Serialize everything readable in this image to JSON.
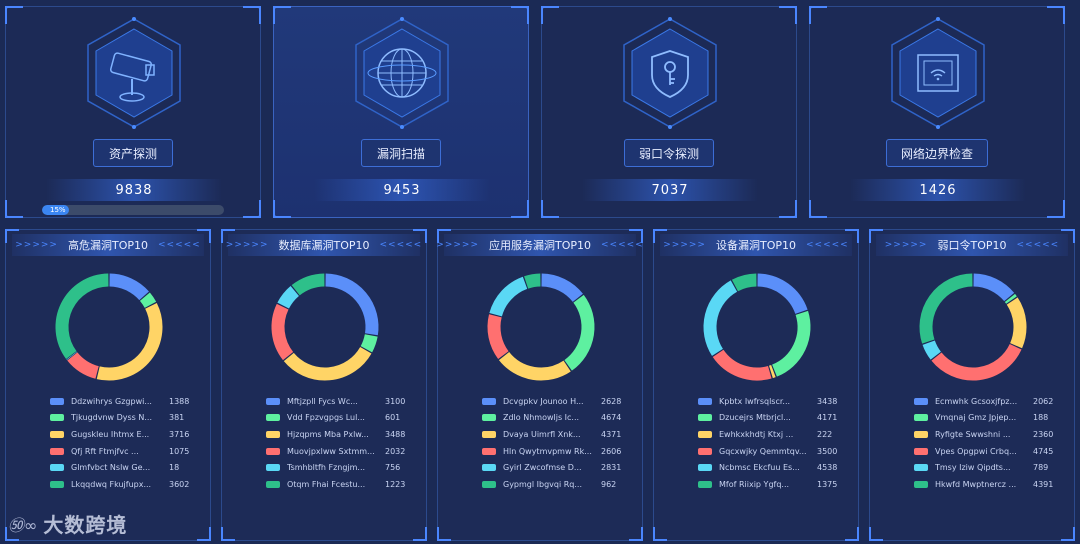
{
  "colors": {
    "blue": "#5b8ff9",
    "green": "#5ef0a0",
    "yellow": "#ffd466",
    "red": "#ff7070",
    "cyan": "#5ad8f5",
    "teal": "#2ec08a"
  },
  "cards": [
    {
      "label": "资产探测",
      "value": "9838",
      "icon": "camera-icon",
      "progress_label": "15%",
      "progress": 0.15
    },
    {
      "label": "漏洞扫描",
      "value": "9453",
      "icon": "globe-icon"
    },
    {
      "label": "弱口令探测",
      "value": "7037",
      "icon": "shield-key-icon"
    },
    {
      "label": "网络边界检查",
      "value": "1426",
      "icon": "network-device-icon"
    }
  ],
  "panels": [
    {
      "arrows_left": ">>>>>",
      "arrows_right": "<<<<<",
      "title": "高危漏洞TOP10",
      "items": [
        {
          "name": "Ddzwihrys Gzgpwi...",
          "value": "1388",
          "color": "#5b8ff9",
          "num": 1388
        },
        {
          "name": "Tjkugdvnw Dyss N...",
          "value": "381",
          "color": "#5ef0a0",
          "num": 381
        },
        {
          "name": "Gugskleu Ihtmx E...",
          "value": "3716",
          "color": "#ffd466",
          "num": 3716
        },
        {
          "name": "Qfj Rft Ftmjfvc ...",
          "value": "1075",
          "color": "#ff7070",
          "num": 1075
        },
        {
          "name": "Glmfvbct Nslw Ge...",
          "value": "18",
          "color": "#5ad8f5",
          "num": 18
        },
        {
          "name": "Lkqqdwq Fkujfupx...",
          "value": "3602",
          "color": "#2ec08a",
          "num": 3602
        }
      ]
    },
    {
      "arrows_left": ">>>>>",
      "arrows_right": "<<<<<",
      "title": "数据库漏洞TOP10",
      "items": [
        {
          "name": "Mftjzpll Fycs Wc...",
          "value": "3100",
          "color": "#5b8ff9",
          "num": 3100
        },
        {
          "name": "Vdd Fpzvgpgs Lul...",
          "value": "601",
          "color": "#5ef0a0",
          "num": 601
        },
        {
          "name": "Hjzqpms Mba Pxlw...",
          "value": "3488",
          "color": "#ffd466",
          "num": 3488
        },
        {
          "name": "Muovjpxlww Sxtmm...",
          "value": "2032",
          "color": "#ff7070",
          "num": 2032
        },
        {
          "name": "Tsmhbltfh Fzngjm...",
          "value": "756",
          "color": "#5ad8f5",
          "num": 756
        },
        {
          "name": "Otqm Fhai Fcestu...",
          "value": "1223",
          "color": "#2ec08a",
          "num": 1223
        }
      ]
    },
    {
      "arrows_left": ">>>>>",
      "arrows_right": "<<<<<",
      "title": "应用服务漏洞TOP10",
      "items": [
        {
          "name": "Dcvgpkv Jounoo H...",
          "value": "2628",
          "color": "#5b8ff9",
          "num": 2628
        },
        {
          "name": "Zdlo Nhmowljs Ic...",
          "value": "4674",
          "color": "#5ef0a0",
          "num": 4674
        },
        {
          "name": "Dvaya Uimrfl Xnk...",
          "value": "4371",
          "color": "#ffd466",
          "num": 4371
        },
        {
          "name": "Hln Qwytmvpmw Rk...",
          "value": "2606",
          "color": "#ff7070",
          "num": 2606
        },
        {
          "name": "Gyirl Zwcofmse D...",
          "value": "2831",
          "color": "#5ad8f5",
          "num": 2831
        },
        {
          "name": "Gypmgl Ibgvqi Rq...",
          "value": "962",
          "color": "#2ec08a",
          "num": 962
        }
      ]
    },
    {
      "arrows_left": ">>>>>",
      "arrows_right": "<<<<<",
      "title": "设备漏洞TOP10",
      "items": [
        {
          "name": "Kpbtx Iwfrsqlscr...",
          "value": "3438",
          "color": "#5b8ff9",
          "num": 3438
        },
        {
          "name": "Dzucejrs Mtbrjcl...",
          "value": "4171",
          "color": "#5ef0a0",
          "num": 4171
        },
        {
          "name": "Ewhkxkhdtj Ktxj ...",
          "value": "222",
          "color": "#ffd466",
          "num": 222
        },
        {
          "name": "Gqcxwjky Qemmtqv...",
          "value": "3500",
          "color": "#ff7070",
          "num": 3500
        },
        {
          "name": "Ncbmsc Ekcfuu Es...",
          "value": "4538",
          "color": "#5ad8f5",
          "num": 4538
        },
        {
          "name": "Mfof Riixip Ygfq...",
          "value": "1375",
          "color": "#2ec08a",
          "num": 1375
        }
      ]
    },
    {
      "arrows_left": ">>>>>",
      "arrows_right": "<<<<<",
      "title": "弱口令TOP10",
      "items": [
        {
          "name": "Ecmwhk Gcsoxjfpz...",
          "value": "2062",
          "color": "#5b8ff9",
          "num": 2062
        },
        {
          "name": "Vmqnaj Gmz Jpjep...",
          "value": "188",
          "color": "#5ef0a0",
          "num": 188
        },
        {
          "name": "Ryfigte Swwshni ...",
          "value": "2360",
          "color": "#ffd466",
          "num": 2360
        },
        {
          "name": "Vpes Opgpwi Crbq...",
          "value": "4745",
          "color": "#ff7070",
          "num": 4745
        },
        {
          "name": "Tmsy Iziw Qipdts...",
          "value": "789",
          "color": "#5ad8f5",
          "num": 789
        },
        {
          "name": "Hkwfd Mwptnercz ...",
          "value": "4391",
          "color": "#2ec08a",
          "num": 4391
        }
      ]
    }
  ],
  "watermark": {
    "logo": "㊿∞",
    "text": "大数跨境"
  }
}
